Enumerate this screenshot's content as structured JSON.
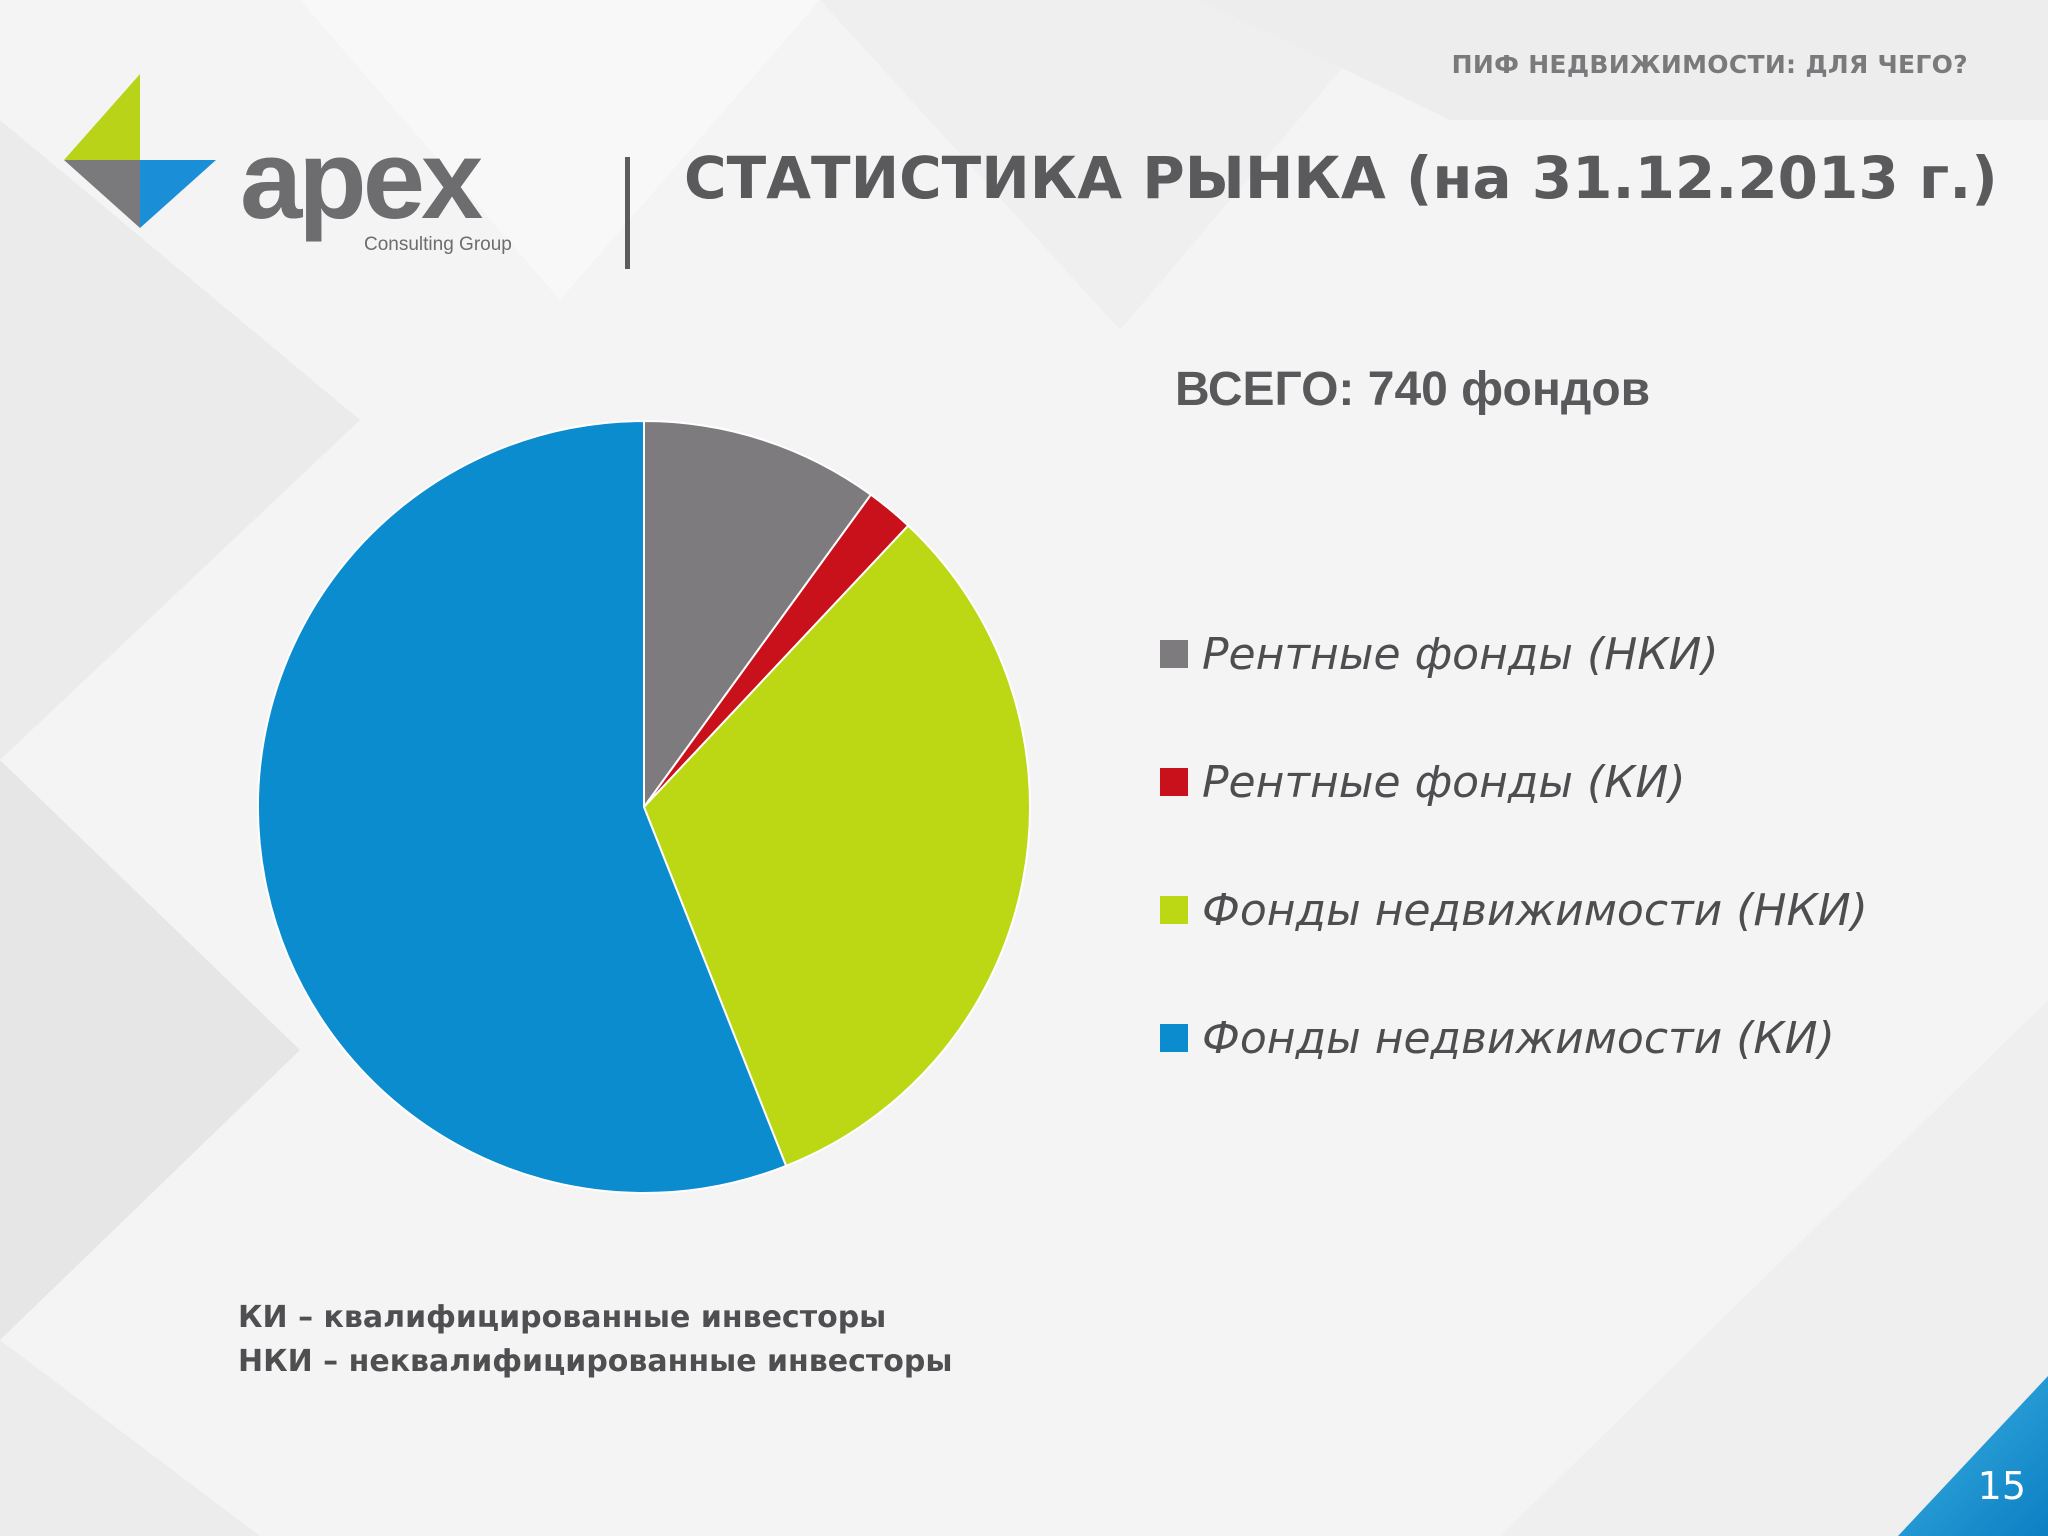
{
  "header": {
    "section_label": "ПИФ НЕДВИЖИМОСТИ: ДЛЯ ЧЕГО?",
    "title": "СТАТИСТИКА РЫНКА (на 31.12.2013 г.)"
  },
  "logo": {
    "wordmark": "apex",
    "tagline": "Consulting Group",
    "colors": [
      "#b9d418",
      "#1a8fd8",
      "#7a7a7c"
    ]
  },
  "footer": {
    "notes": [
      "КИ – квалифицированные инвесторы",
      "НКИ – неквалифицированные инвесторы"
    ],
    "page_number": "15"
  },
  "chart_data": {
    "type": "pie",
    "title": "ВСЕГО: 740 фондов",
    "legend_position": "right",
    "categories": [
      "Рентные фонды (НКИ)",
      "Рентные фонды (КИ)",
      "Фонды недвижимости (НКИ)",
      "Фонды недвижимости (КИ)"
    ],
    "values": [
      10,
      2,
      32,
      56
    ],
    "colors": [
      "#7d7b7d",
      "#c8111a",
      "#bcd714",
      "#0a8ccf"
    ],
    "start": "top",
    "direction": "clockwise"
  }
}
